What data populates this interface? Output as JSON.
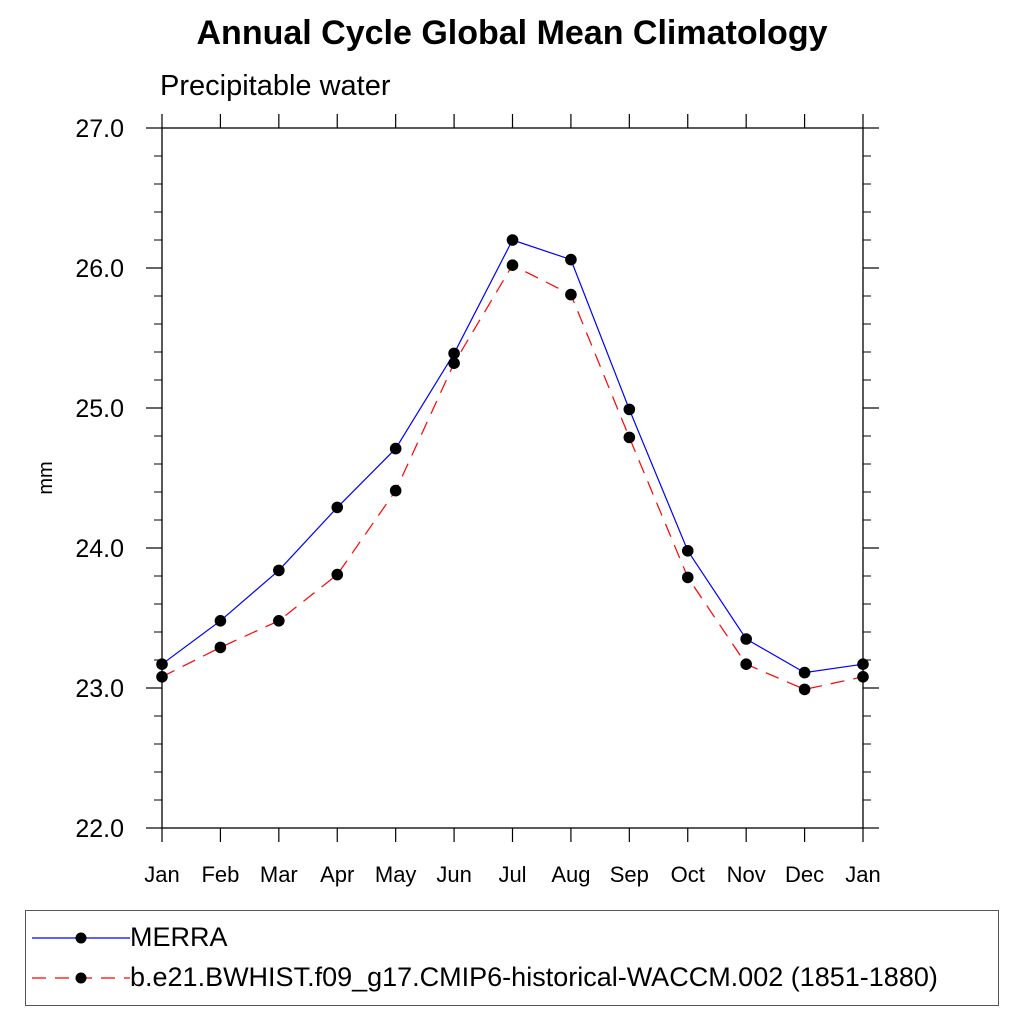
{
  "chart_data": {
    "type": "line",
    "title": "Annual Cycle Global Mean Climatology",
    "subtitle": "Precipitable water",
    "xlabel": "",
    "ylabel": "mm",
    "categories": [
      "Jan",
      "Feb",
      "Mar",
      "Apr",
      "May",
      "Jun",
      "Jul",
      "Aug",
      "Sep",
      "Oct",
      "Nov",
      "Dec",
      "Jan"
    ],
    "ylim": [
      22.0,
      27.0
    ],
    "yticks": [
      "22.0",
      "23.0",
      "24.0",
      "25.0",
      "26.0",
      "27.0"
    ],
    "grid": false,
    "legend_position": "bottom",
    "series": [
      {
        "name": "MERRA",
        "color": "#0000ff",
        "dash": "solid",
        "values": [
          23.17,
          23.48,
          23.84,
          24.29,
          24.71,
          25.39,
          26.2,
          26.06,
          24.99,
          23.98,
          23.35,
          23.11,
          23.17
        ]
      },
      {
        "name": "b.e21.BWHIST.f09_g17.CMIP6-historical-WACCM.002 (1851-1880)",
        "color": "#ff0000",
        "dash": "dashed",
        "values": [
          23.08,
          23.29,
          23.48,
          23.81,
          24.41,
          25.32,
          26.02,
          25.81,
          24.79,
          23.79,
          23.17,
          22.99,
          23.08
        ]
      }
    ]
  }
}
